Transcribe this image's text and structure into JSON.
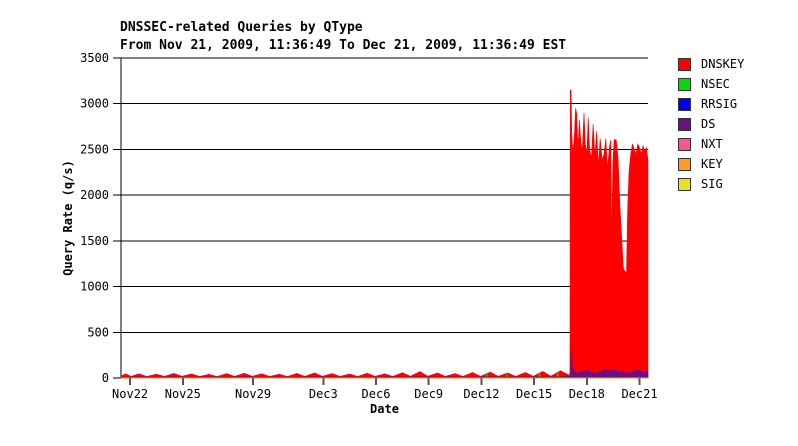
{
  "page": {
    "background": "#ffffff"
  },
  "chart_data": {
    "type": "area",
    "title": "DNSSEC-related Queries by QType",
    "subtitle": "From Nov 21, 2009, 11:36:49 To Dec 21, 2009, 11:36:49 EST",
    "xlabel": "Date",
    "ylabel": "Query Rate (q/s)",
    "ylim": [
      0,
      3500
    ],
    "yticks": [
      0,
      500,
      1000,
      1500,
      2000,
      2500,
      3000,
      3500
    ],
    "grid": "horizontal",
    "legend_position": "right",
    "x_unit": "days after Nov 21, 2009 00:00 EST",
    "x_range": [
      0.483,
      30.483
    ],
    "xticks": [
      {
        "t": 1,
        "label": "Nov22"
      },
      {
        "t": 4,
        "label": "Nov25"
      },
      {
        "t": 8,
        "label": "Nov29"
      },
      {
        "t": 12,
        "label": "Dec3"
      },
      {
        "t": 15,
        "label": "Dec6"
      },
      {
        "t": 18,
        "label": "Dec9"
      },
      {
        "t": 21,
        "label": "Dec12"
      },
      {
        "t": 24,
        "label": "Dec15"
      },
      {
        "t": 27,
        "label": "Dec18"
      },
      {
        "t": 30,
        "label": "Dec21"
      }
    ],
    "series": [
      {
        "name": "DNSKEY",
        "color": "#ff0000",
        "points": [
          [
            0.483,
            22
          ],
          [
            0.75,
            45
          ],
          [
            1.05,
            18
          ],
          [
            1.5,
            46
          ],
          [
            1.95,
            17
          ],
          [
            2.5,
            42
          ],
          [
            2.95,
            18
          ],
          [
            3.5,
            50
          ],
          [
            3.95,
            19
          ],
          [
            4.5,
            45
          ],
          [
            4.95,
            17
          ],
          [
            5.5,
            40
          ],
          [
            5.95,
            16
          ],
          [
            6.5,
            48
          ],
          [
            6.95,
            18
          ],
          [
            7.5,
            52
          ],
          [
            7.95,
            19
          ],
          [
            8.5,
            46
          ],
          [
            8.95,
            17
          ],
          [
            9.5,
            42
          ],
          [
            9.95,
            16
          ],
          [
            10.5,
            50
          ],
          [
            10.95,
            18
          ],
          [
            11.5,
            55
          ],
          [
            11.95,
            19
          ],
          [
            12.5,
            48
          ],
          [
            12.95,
            17
          ],
          [
            13.5,
            44
          ],
          [
            13.95,
            16
          ],
          [
            14.5,
            52
          ],
          [
            14.95,
            18
          ],
          [
            15.5,
            46
          ],
          [
            15.95,
            17
          ],
          [
            16.5,
            58
          ],
          [
            16.95,
            19
          ],
          [
            17.5,
            70
          ],
          [
            17.95,
            20
          ],
          [
            18.5,
            55
          ],
          [
            18.95,
            18
          ],
          [
            19.5,
            48
          ],
          [
            19.95,
            17
          ],
          [
            20.5,
            60
          ],
          [
            20.95,
            18
          ],
          [
            21.5,
            65
          ],
          [
            21.95,
            19
          ],
          [
            22.5,
            55
          ],
          [
            22.95,
            18
          ],
          [
            23.5,
            60
          ],
          [
            23.95,
            19
          ],
          [
            24.5,
            72
          ],
          [
            24.95,
            20
          ],
          [
            25.5,
            80
          ],
          [
            25.9,
            40
          ],
          [
            26.04,
            30
          ],
          [
            26.06,
            3150
          ],
          [
            26.1,
            3150
          ],
          [
            26.14,
            2700
          ],
          [
            26.2,
            2480
          ],
          [
            26.28,
            2600
          ],
          [
            26.36,
            2950
          ],
          [
            26.42,
            2900
          ],
          [
            26.5,
            2520
          ],
          [
            26.58,
            2820
          ],
          [
            26.66,
            2580
          ],
          [
            26.74,
            2480
          ],
          [
            26.84,
            2900
          ],
          [
            26.92,
            2550
          ],
          [
            27.0,
            2450
          ],
          [
            27.08,
            2850
          ],
          [
            27.16,
            2500
          ],
          [
            27.26,
            2400
          ],
          [
            27.36,
            2780
          ],
          [
            27.46,
            2420
          ],
          [
            27.56,
            2700
          ],
          [
            27.66,
            2320
          ],
          [
            27.76,
            2620
          ],
          [
            27.88,
            2380
          ],
          [
            27.98,
            2450
          ],
          [
            28.08,
            2620
          ],
          [
            28.18,
            2280
          ],
          [
            28.28,
            2520
          ],
          [
            28.36,
            2600
          ],
          [
            28.42,
            1500
          ],
          [
            28.48,
            2350
          ],
          [
            28.56,
            2610
          ],
          [
            28.68,
            2600
          ],
          [
            28.78,
            2400
          ],
          [
            28.88,
            1900
          ],
          [
            28.98,
            1550
          ],
          [
            29.08,
            1200
          ],
          [
            29.18,
            1160
          ],
          [
            29.26,
            1160
          ],
          [
            29.32,
            1800
          ],
          [
            29.4,
            2250
          ],
          [
            29.5,
            2450
          ],
          [
            29.6,
            2560
          ],
          [
            29.7,
            2500
          ],
          [
            29.8,
            2450
          ],
          [
            29.9,
            2560
          ],
          [
            30.0,
            2520
          ],
          [
            30.1,
            2450
          ],
          [
            30.2,
            2540
          ],
          [
            30.3,
            2480
          ],
          [
            30.4,
            2520
          ],
          [
            30.483,
            2380
          ]
        ]
      },
      {
        "name": "NSEC",
        "color": "#00dd00",
        "points": [
          [
            0.483,
            0
          ],
          [
            21.25,
            0
          ],
          [
            21.3,
            58
          ],
          [
            21.36,
            0
          ],
          [
            22.4,
            0
          ],
          [
            22.45,
            52
          ],
          [
            22.5,
            0
          ],
          [
            24.25,
            0
          ],
          [
            24.3,
            62
          ],
          [
            24.36,
            0
          ],
          [
            25.3,
            0
          ],
          [
            25.35,
            75
          ],
          [
            25.41,
            0
          ],
          [
            25.95,
            0
          ],
          [
            26.0,
            45
          ],
          [
            26.05,
            0
          ],
          [
            30.483,
            0
          ]
        ]
      },
      {
        "name": "RRSIG",
        "color": "#0000ff",
        "points": [
          [
            0.483,
            0
          ],
          [
            30.483,
            0
          ]
        ]
      },
      {
        "name": "DS",
        "color": "#6b0f82",
        "points": [
          [
            0.483,
            9
          ],
          [
            1.5,
            13
          ],
          [
            2.5,
            9
          ],
          [
            3.5,
            13
          ],
          [
            4.5,
            9
          ],
          [
            5.5,
            13
          ],
          [
            6.5,
            10
          ],
          [
            7.5,
            13
          ],
          [
            8.5,
            9
          ],
          [
            9.5,
            12
          ],
          [
            10.5,
            9
          ],
          [
            11.5,
            13
          ],
          [
            12.5,
            10
          ],
          [
            13.5,
            12
          ],
          [
            14.5,
            9
          ],
          [
            15.5,
            13
          ],
          [
            16.5,
            10
          ],
          [
            17.5,
            14
          ],
          [
            18.5,
            10
          ],
          [
            19.5,
            12
          ],
          [
            20.5,
            10
          ],
          [
            21.5,
            13
          ],
          [
            22.5,
            10
          ],
          [
            23.5,
            13
          ],
          [
            24.5,
            12
          ],
          [
            25.5,
            15
          ],
          [
            26.0,
            20
          ],
          [
            26.08,
            60
          ],
          [
            26.12,
            390
          ],
          [
            26.18,
            120
          ],
          [
            26.25,
            70
          ],
          [
            26.5,
            55
          ],
          [
            26.75,
            70
          ],
          [
            27.0,
            85
          ],
          [
            27.25,
            60
          ],
          [
            27.5,
            50
          ],
          [
            27.75,
            70
          ],
          [
            28.0,
            90
          ],
          [
            28.25,
            75
          ],
          [
            28.5,
            90
          ],
          [
            28.65,
            85
          ],
          [
            28.8,
            60
          ],
          [
            29.0,
            80
          ],
          [
            29.2,
            45
          ],
          [
            29.35,
            60
          ],
          [
            29.5,
            55
          ],
          [
            29.75,
            80
          ],
          [
            30.0,
            85
          ],
          [
            30.2,
            60
          ],
          [
            30.35,
            75
          ],
          [
            30.483,
            70
          ]
        ]
      },
      {
        "name": "NXT",
        "color": "#f6578f",
        "points": [
          [
            0.483,
            0
          ],
          [
            30.483,
            0
          ]
        ]
      },
      {
        "name": "KEY",
        "color": "#ff9b21",
        "points": [
          [
            0.483,
            0
          ],
          [
            30.483,
            0
          ]
        ]
      },
      {
        "name": "SIG",
        "color": "#e8e11f",
        "points": [
          [
            0.483,
            0
          ],
          [
            30.483,
            0
          ]
        ]
      }
    ]
  }
}
